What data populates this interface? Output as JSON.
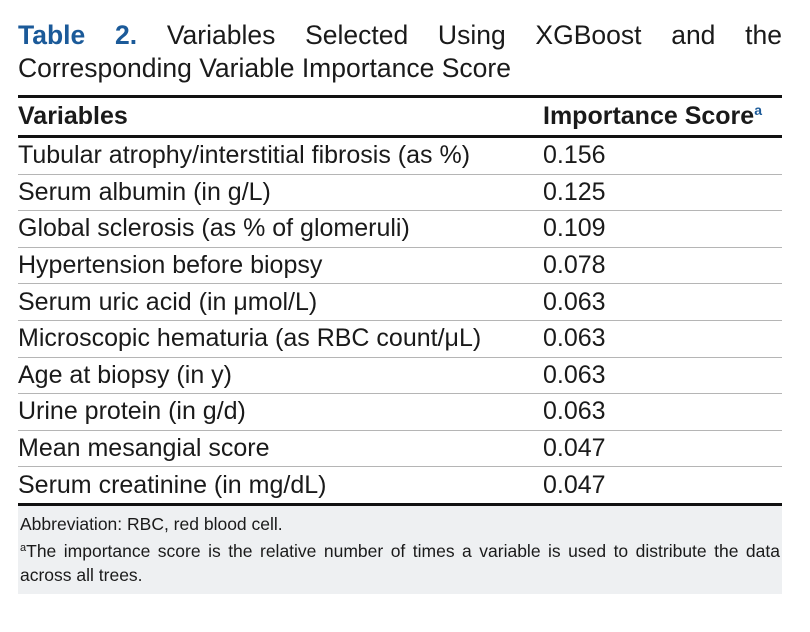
{
  "caption": {
    "label": "Table 2.",
    "title_line1": "Variables Selected Using XGBoost and the",
    "title_line2": "Corresponding Variable Importance Score"
  },
  "table": {
    "headers": {
      "variables": "Variables",
      "score": "Importance Score",
      "score_marker": "a"
    },
    "rows": [
      {
        "variable": "Tubular atrophy/interstitial fibrosis (as %)",
        "score": "0.156"
      },
      {
        "variable": "Serum albumin (in g/L)",
        "score": "0.125"
      },
      {
        "variable": "Global sclerosis (as % of glomeruli)",
        "score": "0.109"
      },
      {
        "variable": "Hypertension before biopsy",
        "score": "0.078"
      },
      {
        "variable": "Serum uric acid (in μmol/L)",
        "score": "0.063"
      },
      {
        "variable": "Microscopic hematuria (as RBC count/μL)",
        "score": "0.063"
      },
      {
        "variable": "Age at biopsy (in y)",
        "score": "0.063"
      },
      {
        "variable": "Urine protein (in g/d)",
        "score": "0.063"
      },
      {
        "variable": "Mean mesangial score",
        "score": "0.047"
      },
      {
        "variable": "Serum creatinine (in mg/dL)",
        "score": "0.047"
      }
    ]
  },
  "footnotes": {
    "abbreviation": "Abbreviation: RBC, red blood cell.",
    "marker": "a",
    "note": "The importance score is the relative number of times a variable is used to distribute the data across all trees."
  },
  "colors": {
    "accent": "#1b5a99",
    "footnote_bg": "#eef0f2"
  }
}
